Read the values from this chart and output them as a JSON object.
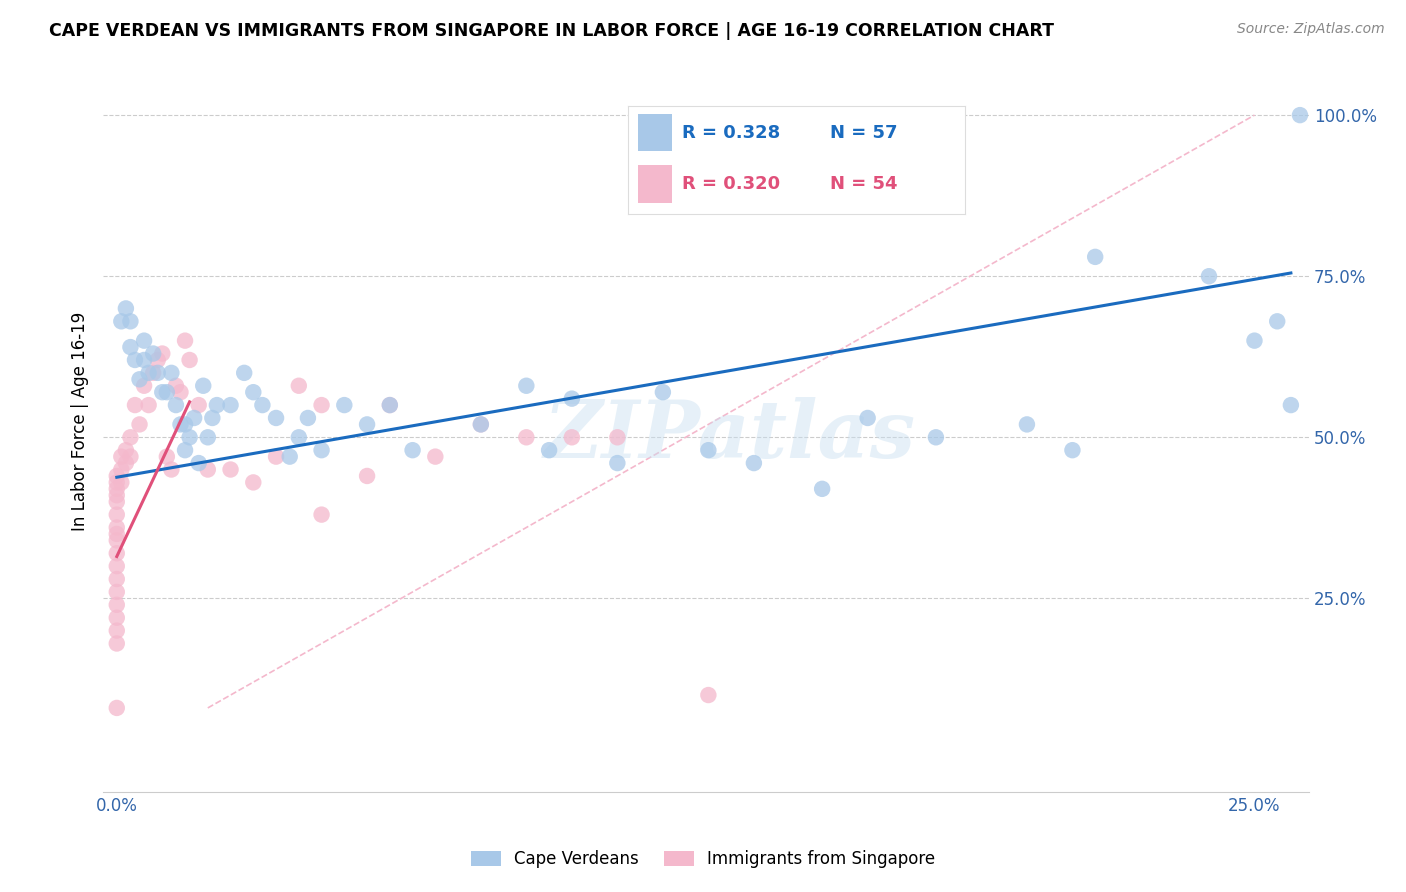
{
  "title": "CAPE VERDEAN VS IMMIGRANTS FROM SINGAPORE IN LABOR FORCE | AGE 16-19 CORRELATION CHART",
  "source": "Source: ZipAtlas.com",
  "ylabel": "In Labor Force | Age 16-19",
  "xlim": [
    -0.003,
    0.262
  ],
  "ylim": [
    -0.05,
    1.1
  ],
  "yticks": [
    0.0,
    0.25,
    0.5,
    0.75,
    1.0
  ],
  "ytick_labels": [
    "",
    "25.0%",
    "50.0%",
    "75.0%",
    "100.0%"
  ],
  "xticks": [
    0.0,
    0.05,
    0.1,
    0.15,
    0.2,
    0.25
  ],
  "xtick_labels": [
    "0.0%",
    "",
    "",
    "",
    "",
    "25.0%"
  ],
  "blue_color": "#a8c8e8",
  "pink_color": "#f4b8cc",
  "blue_line_color": "#1a6bbf",
  "pink_line_color": "#e0507a",
  "diag_line_color": "#f4b8cc",
  "R_blue": 0.328,
  "N_blue": 57,
  "R_pink": 0.32,
  "N_pink": 54,
  "legend_label_blue": "Cape Verdeans",
  "legend_label_pink": "Immigrants from Singapore",
  "watermark": "ZIPatlas",
  "blue_scatter_x": [
    0.001,
    0.002,
    0.003,
    0.003,
    0.004,
    0.005,
    0.006,
    0.006,
    0.007,
    0.008,
    0.009,
    0.01,
    0.011,
    0.012,
    0.013,
    0.014,
    0.015,
    0.015,
    0.016,
    0.017,
    0.018,
    0.019,
    0.02,
    0.021,
    0.022,
    0.025,
    0.028,
    0.03,
    0.032,
    0.035,
    0.038,
    0.04,
    0.042,
    0.045,
    0.05,
    0.055,
    0.06,
    0.065,
    0.08,
    0.09,
    0.095,
    0.1,
    0.11,
    0.12,
    0.13,
    0.14,
    0.155,
    0.165,
    0.18,
    0.2,
    0.21,
    0.215,
    0.24,
    0.25,
    0.255,
    0.258,
    0.26
  ],
  "blue_scatter_y": [
    0.68,
    0.7,
    0.68,
    0.64,
    0.62,
    0.59,
    0.62,
    0.65,
    0.6,
    0.63,
    0.6,
    0.57,
    0.57,
    0.6,
    0.55,
    0.52,
    0.48,
    0.52,
    0.5,
    0.53,
    0.46,
    0.58,
    0.5,
    0.53,
    0.55,
    0.55,
    0.6,
    0.57,
    0.55,
    0.53,
    0.47,
    0.5,
    0.53,
    0.48,
    0.55,
    0.52,
    0.55,
    0.48,
    0.52,
    0.58,
    0.48,
    0.56,
    0.46,
    0.57,
    0.48,
    0.46,
    0.42,
    0.53,
    0.5,
    0.52,
    0.48,
    0.78,
    0.75,
    0.65,
    0.68,
    0.55,
    1.0
  ],
  "pink_scatter_x": [
    0.0,
    0.0,
    0.0,
    0.0,
    0.0,
    0.0,
    0.0,
    0.0,
    0.0,
    0.0,
    0.0,
    0.0,
    0.0,
    0.0,
    0.0,
    0.0,
    0.0,
    0.0,
    0.001,
    0.001,
    0.001,
    0.002,
    0.002,
    0.003,
    0.003,
    0.004,
    0.005,
    0.006,
    0.007,
    0.008,
    0.009,
    0.01,
    0.011,
    0.012,
    0.013,
    0.014,
    0.015,
    0.016,
    0.018,
    0.02,
    0.025,
    0.03,
    0.035,
    0.04,
    0.045,
    0.055,
    0.06,
    0.07,
    0.08,
    0.09,
    0.1,
    0.11,
    0.13,
    0.045
  ],
  "pink_scatter_y": [
    0.44,
    0.43,
    0.42,
    0.41,
    0.4,
    0.38,
    0.36,
    0.35,
    0.34,
    0.32,
    0.3,
    0.28,
    0.26,
    0.24,
    0.22,
    0.2,
    0.18,
    0.08,
    0.47,
    0.45,
    0.43,
    0.48,
    0.46,
    0.5,
    0.47,
    0.55,
    0.52,
    0.58,
    0.55,
    0.6,
    0.62,
    0.63,
    0.47,
    0.45,
    0.58,
    0.57,
    0.65,
    0.62,
    0.55,
    0.45,
    0.45,
    0.43,
    0.47,
    0.58,
    0.55,
    0.44,
    0.55,
    0.47,
    0.52,
    0.5,
    0.5,
    0.5,
    0.1,
    0.38
  ],
  "blue_line_x": [
    0.0,
    0.258
  ],
  "blue_line_y": [
    0.438,
    0.755
  ],
  "pink_line_x": [
    0.0,
    0.016
  ],
  "pink_line_y": [
    0.315,
    0.555
  ],
  "diag_line_x": [
    0.02,
    0.25
  ],
  "diag_line_y": [
    0.08,
    1.0
  ]
}
